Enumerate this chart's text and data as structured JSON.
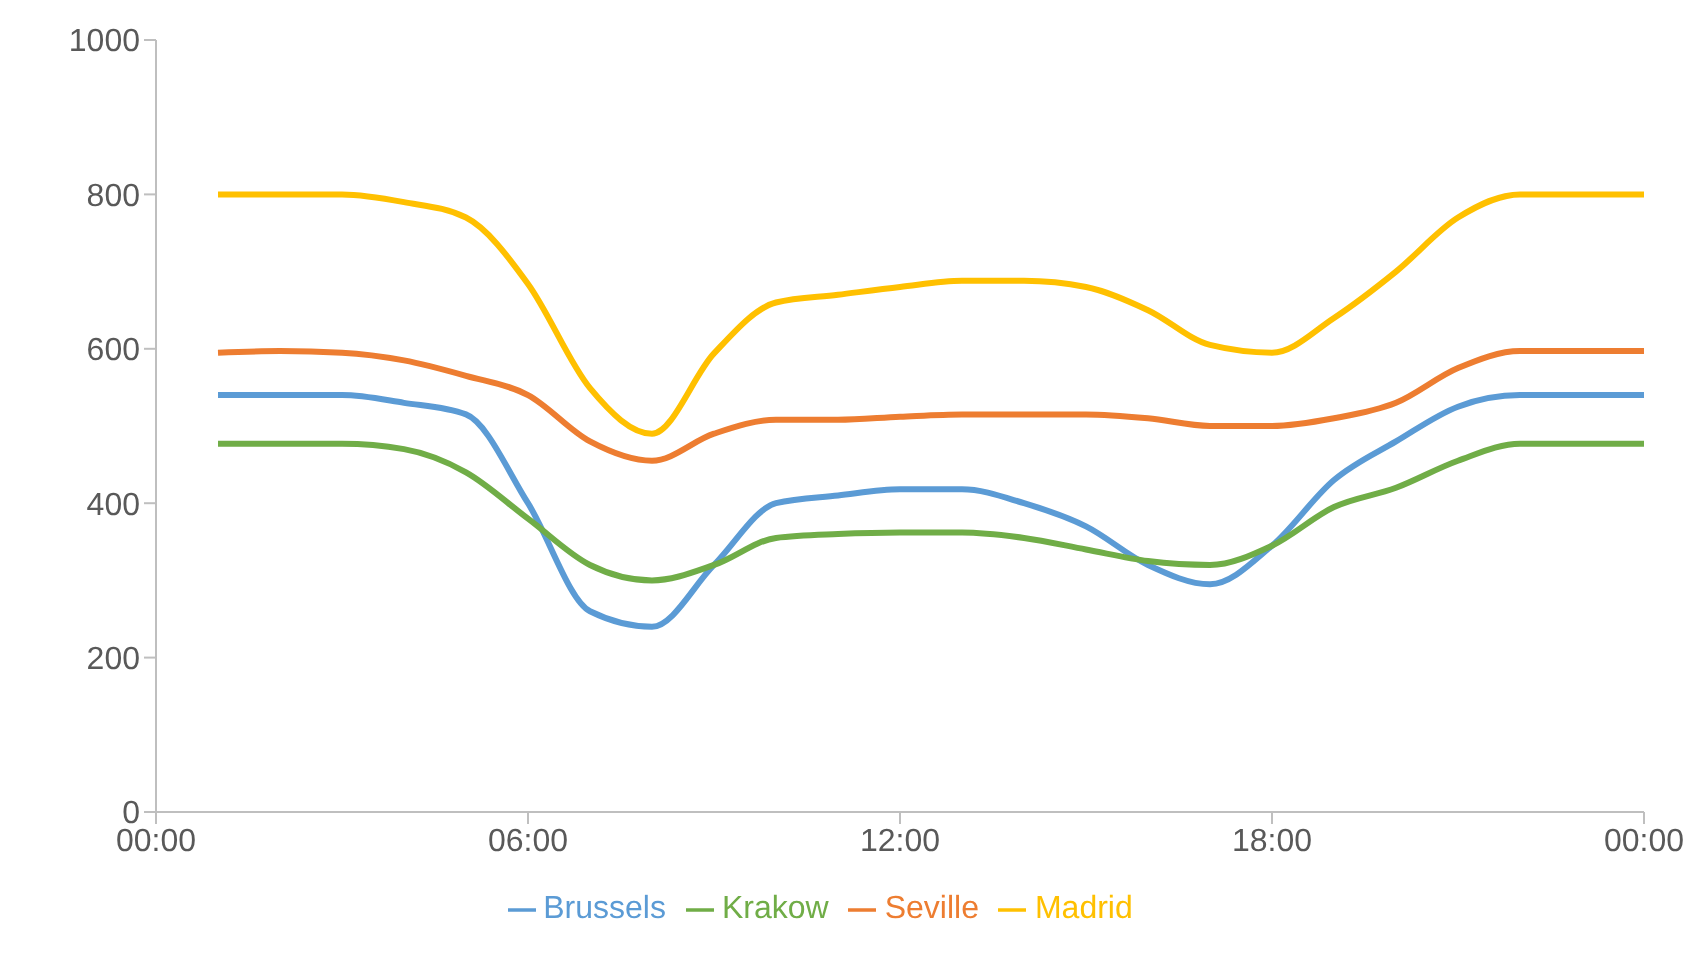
{
  "chart_data": {
    "type": "line",
    "x": [
      1,
      2,
      3,
      4,
      5,
      6,
      7,
      8,
      9,
      10,
      11,
      12,
      13,
      14,
      15,
      16,
      17,
      18,
      19,
      20,
      21,
      22,
      23,
      24
    ],
    "series": [
      {
        "name": "Brussels",
        "color": "#5b9bd5",
        "values": [
          540,
          540,
          540,
          530,
          515,
          400,
          260,
          240,
          320,
          400,
          410,
          418,
          418,
          400,
          370,
          320,
          295,
          345,
          430,
          480,
          525,
          540,
          540,
          540
        ]
      },
      {
        "name": "Krakow",
        "color": "#70ad47",
        "values": [
          477,
          477,
          477,
          470,
          440,
          380,
          320,
          300,
          320,
          355,
          360,
          362,
          362,
          355,
          340,
          325,
          320,
          345,
          395,
          420,
          455,
          477,
          477,
          477
        ]
      },
      {
        "name": "Seville",
        "color": "#ed7d31",
        "values": [
          595,
          597,
          595,
          585,
          565,
          540,
          480,
          455,
          490,
          508,
          508,
          512,
          515,
          515,
          515,
          510,
          500,
          500,
          510,
          530,
          575,
          597,
          597,
          597
        ]
      },
      {
        "name": "Madrid",
        "color": "#ffc000",
        "values": [
          800,
          800,
          800,
          790,
          770,
          684,
          549,
          490,
          594,
          660,
          670,
          680,
          688,
          688,
          680,
          650,
          605,
          595,
          640,
          700,
          770,
          800,
          800,
          800
        ]
      }
    ],
    "xlim": [
      0,
      24
    ],
    "xticks": [
      {
        "value": 0,
        "label": "00:00"
      },
      {
        "value": 6,
        "label": "06:00"
      },
      {
        "value": 12,
        "label": "12:00"
      },
      {
        "value": 18,
        "label": "18:00"
      },
      {
        "value": 24,
        "label": "00:00"
      }
    ],
    "ylim": [
      0,
      1000
    ],
    "yticks": [
      0,
      200,
      400,
      600,
      800,
      1000
    ],
    "grid": false,
    "legend": "bottom",
    "marker": "none",
    "line_style": "solid"
  }
}
